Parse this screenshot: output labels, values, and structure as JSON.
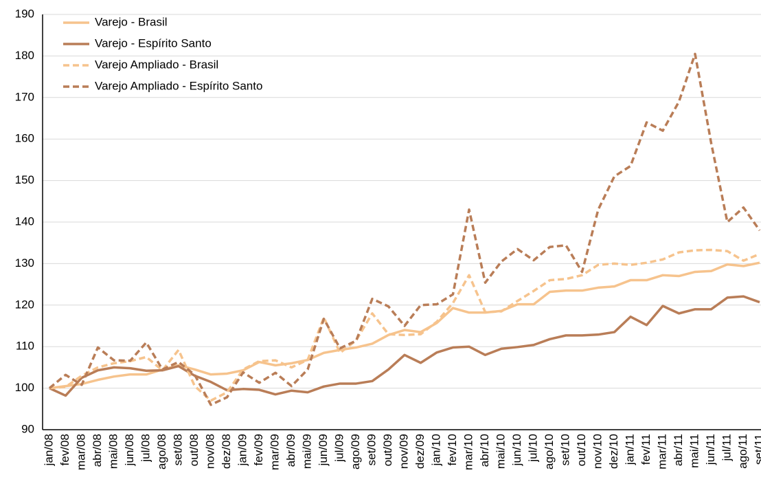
{
  "chart_data": {
    "type": "line",
    "categories": [
      "jan/08",
      "fev/08",
      "mar/08",
      "abr/08",
      "mai/08",
      "jun/08",
      "jul/08",
      "ago/08",
      "set/08",
      "out/08",
      "nov/08",
      "dez/08",
      "jan/09",
      "fev/09",
      "mar/09",
      "abr/09",
      "mai/09",
      "jun/09",
      "jul/09",
      "ago/09",
      "set/09",
      "out/09",
      "nov/09",
      "dez/09",
      "jan/10",
      "fev/10",
      "mar/10",
      "abr/10",
      "mai/10",
      "jun/10",
      "jul/10",
      "ago/10",
      "set/10",
      "out/10",
      "nov/10",
      "dez/10",
      "jan/11",
      "fev/11",
      "mar/11",
      "abr/11",
      "mai/11",
      "jun/11",
      "jul/11",
      "ago/11",
      "set/11"
    ],
    "series": [
      {
        "name": "Varejo - Brasil",
        "color": "#f6c38d",
        "dash": false,
        "values": [
          100,
          100.5,
          101,
          102,
          102.8,
          103.3,
          103.3,
          104.5,
          105.5,
          104.5,
          103.3,
          103.5,
          104.3,
          106.3,
          105.5,
          106,
          106.8,
          108.5,
          109.2,
          109.8,
          110.7,
          112.8,
          114,
          113.5,
          115.7,
          119.3,
          118.2,
          118.2,
          118.6,
          120.2,
          120.2,
          123.2,
          123.5,
          123.5,
          124.2,
          124.5,
          126,
          126,
          127.2,
          127,
          128,
          128.2,
          129.8,
          129.4,
          130.2
        ]
      },
      {
        "name": "Varejo - Espírito Santo",
        "color": "#b97d57",
        "dash": false,
        "values": [
          100,
          98.2,
          102.5,
          104.3,
          105,
          104.8,
          104.2,
          104.3,
          105.3,
          103,
          101.5,
          99.5,
          99.8,
          99.6,
          98.5,
          99.4,
          99,
          100.4,
          101.1,
          101.1,
          101.7,
          104.5,
          108,
          106.1,
          108.6,
          109.8,
          110,
          108,
          109.5,
          109.9,
          110.4,
          111.8,
          112.7,
          112.7,
          112.9,
          113.5,
          117.2,
          115.2,
          119.8,
          118,
          119,
          119,
          121.8,
          122.1,
          120.7
        ]
      },
      {
        "name": "Varejo Ampliado - Brasil",
        "color": "#f6c38d",
        "dash": true,
        "values": [
          100,
          100.3,
          103,
          105,
          106,
          106.5,
          107.5,
          104.3,
          109.2,
          100.5,
          97,
          99,
          104.5,
          106.5,
          106.7,
          105,
          106.8,
          117,
          108.5,
          111.5,
          118,
          113,
          112.8,
          113,
          116,
          120.5,
          127.2,
          118.3,
          118.5,
          121,
          123.4,
          126,
          126.3,
          127.2,
          129.7,
          130,
          129.7,
          130.2,
          131,
          132.7,
          133.2,
          133.3,
          133,
          130.7,
          132.3
        ]
      },
      {
        "name": "Varejo Ampliado - Espírito Santo",
        "color": "#b97d57",
        "dash": true,
        "values": [
          100,
          103.2,
          100.8,
          109.8,
          106.7,
          106.6,
          111,
          104.5,
          106.3,
          103.2,
          96,
          97.8,
          103.8,
          101.3,
          103.7,
          100.5,
          104.5,
          116.7,
          109.6,
          111.4,
          121.5,
          119.7,
          115,
          120,
          120.2,
          122.6,
          143,
          125.4,
          130.5,
          133.5,
          130.8,
          134,
          134.4,
          128,
          143,
          151,
          153.5,
          164,
          162,
          169,
          180.5,
          159,
          140,
          143.5,
          138
        ]
      }
    ],
    "ylim": [
      90,
      190
    ],
    "yticks": [
      90,
      100,
      110,
      120,
      130,
      140,
      150,
      160,
      170,
      180,
      190
    ],
    "grid": true,
    "legend": "top-left"
  }
}
